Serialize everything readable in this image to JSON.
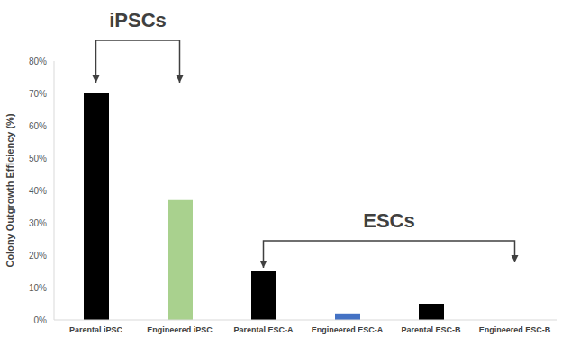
{
  "chart_data": {
    "type": "bar",
    "categories": [
      "Parental iPSC",
      "Engineered iPSC",
      "Parental ESC-A",
      "Engineered ESC-A",
      "Parental ESC-B",
      "Engineered ESC-B"
    ],
    "values": [
      70,
      37,
      15,
      2,
      5,
      0
    ],
    "colors": [
      "#000000",
      "#a9d18e",
      "#000000",
      "#4472c4",
      "#000000",
      "#000000"
    ],
    "y_label": "Colony Outgrowth Efficiency (%)",
    "ylim": [
      0,
      80
    ],
    "yticks": [
      {
        "value": 0,
        "label": "0%"
      },
      {
        "value": 10,
        "label": "10%"
      },
      {
        "value": 20,
        "label": "20%"
      },
      {
        "value": 30,
        "label": "30%"
      },
      {
        "value": 40,
        "label": "40%"
      },
      {
        "value": 50,
        "label": "50%"
      },
      {
        "value": 60,
        "label": "60%"
      },
      {
        "value": 70,
        "label": "70%"
      },
      {
        "value": 80,
        "label": "80%"
      }
    ],
    "grid": false,
    "annotations": [
      {
        "text": "iPSCs",
        "from": "Parental iPSC",
        "to": "Engineered iPSC"
      },
      {
        "text": "ESCs",
        "from": "Parental ESC-A",
        "to": "Engineered ESC-B"
      }
    ]
  }
}
